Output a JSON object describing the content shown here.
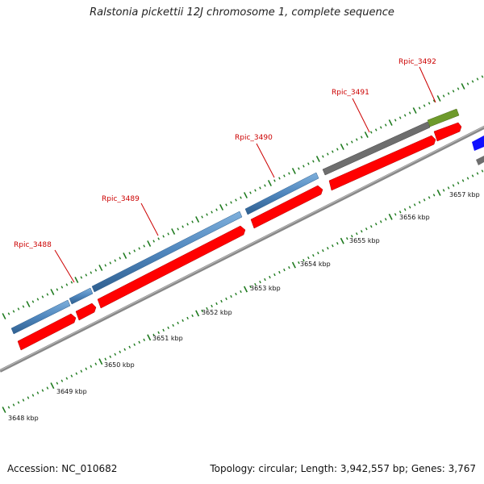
{
  "title": "Ralstonia pickettii 12J chromosome 1, complete sequence",
  "footer": {
    "accession": "Accession: NC_010682",
    "topology": "Topology: circular; Length: 3,942,557 bp; Genes: 3,767"
  },
  "colors": {
    "backbone": "#888888",
    "cds": "#ff0000",
    "blue_feature": "#4f86bd",
    "gray_feature": "#6e6e6e",
    "olive_feature": "#6e9a2b",
    "bright_blue_feature": "#1010ff",
    "gene_label": "#cc0000",
    "tick_green": "#1e7a1e"
  },
  "gene_labels": [
    "Rpic_3488",
    "Rpic_3489",
    "Rpic_3490",
    "Rpic_3491",
    "Rpic_3492"
  ],
  "kbp_labels": [
    "3648 kbp",
    "3649 kbp",
    "3650 kbp",
    "3651 kbp",
    "3652 kbp",
    "3653 kbp",
    "3654 kbp",
    "3655 kbp",
    "3656 kbp",
    "3657 kbp"
  ]
}
